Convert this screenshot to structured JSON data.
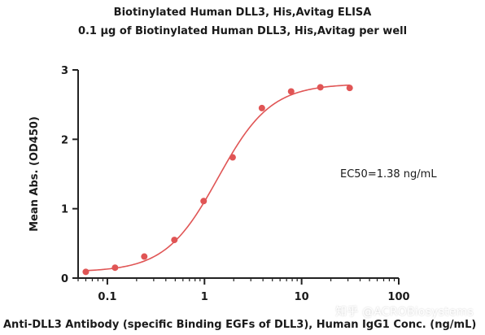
{
  "chart_data": {
    "type": "scatter",
    "title": "Biotinylated Human DLL3, His,Avitag ELISA",
    "subtitle": "0.1 µg of Biotinylated Human DLL3, His,Avitag per well",
    "xlabel": "Anti-DLL3 Antibody (specific Binding EGFs of DLL3), Human IgG1 Conc. (ng/mL)",
    "ylabel": "Mean Abs. (OD450)",
    "x_scale": "log",
    "xlim": [
      0.05,
      100
    ],
    "ylim": [
      0,
      3
    ],
    "x_ticks": [
      0.1,
      1,
      10,
      100
    ],
    "x_tick_labels": [
      "0.1",
      "1",
      "10",
      "100"
    ],
    "y_ticks": [
      0,
      1,
      2,
      3
    ],
    "y_tick_labels": [
      "0",
      "1",
      "2",
      "3"
    ],
    "grid": false,
    "series": [
      {
        "x": [
          0.06,
          0.12,
          0.24,
          0.49,
          0.98,
          1.95,
          3.9,
          7.8,
          15.6,
          31.25
        ],
        "y": [
          0.09,
          0.15,
          0.31,
          0.55,
          1.11,
          1.74,
          2.45,
          2.69,
          2.75,
          2.74
        ],
        "color": "#e05555"
      }
    ],
    "fit_curve": {
      "model": "4PL",
      "bottom": 0.09,
      "top": 2.8,
      "ec50": 1.38,
      "hill": 1.6,
      "color": "#e05555"
    },
    "annotation": "EC50=1.38 ng/mL"
  },
  "watermark": "知乎 @ACROBiosystems"
}
